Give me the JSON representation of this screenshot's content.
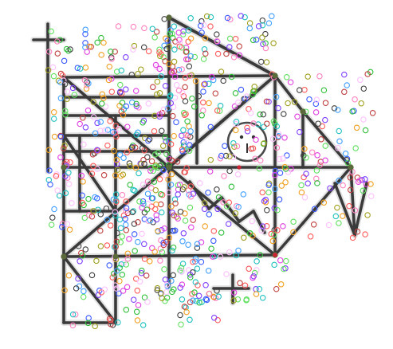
{
  "diagram": {
    "background": "#ffffff",
    "stroke_color": "#3a3a3a",
    "halo_color": "#d8d8d8",
    "dot_palette": [
      "#ff5a5a",
      "#2fbf3a",
      "#3a5aff",
      "#e040e0",
      "#20c0c0",
      "#f0a020",
      "#8040ff",
      "#a0a020",
      "#ff80c0",
      "#40a0ff",
      "#60e060",
      "#c04040",
      "#404040",
      "#ffc0ff"
    ],
    "node_color": "#5a6a3a",
    "red_dot_color": "#cc2233",
    "scatter_count": 900
  }
}
